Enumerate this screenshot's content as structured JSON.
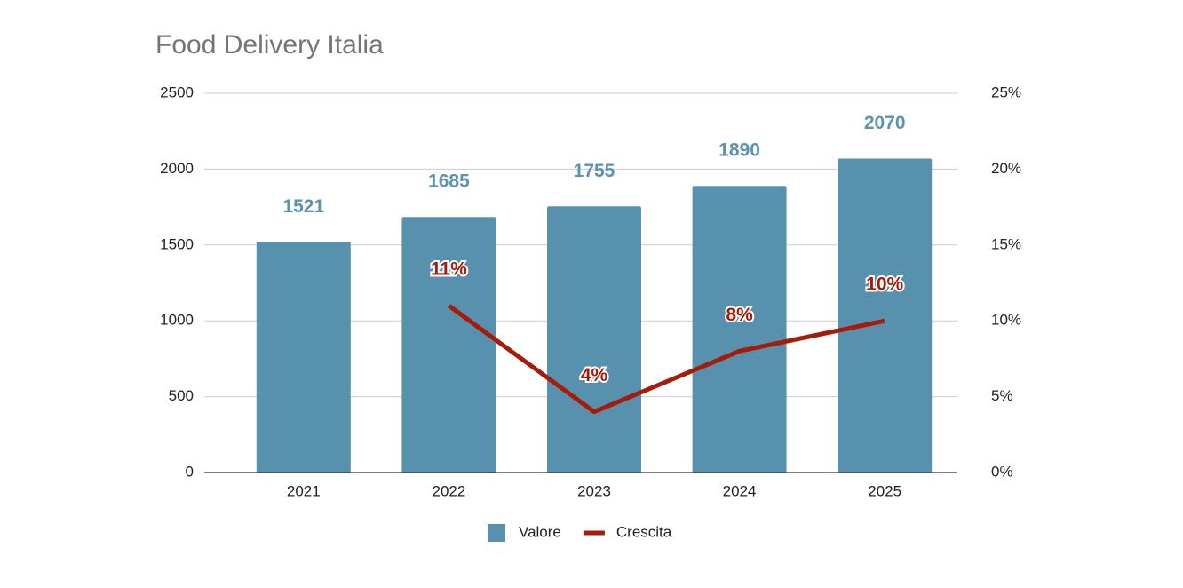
{
  "chart_data": {
    "type": "combo",
    "title": "Food Delivery Italia",
    "categories": [
      "2021",
      "2022",
      "2023",
      "2024",
      "2025"
    ],
    "series": [
      {
        "name": "Valore",
        "type": "bar",
        "color": "#5891ad",
        "values": [
          1521,
          1685,
          1755,
          1890,
          2070
        ]
      },
      {
        "name": "Crescita",
        "type": "line",
        "axis": "y2",
        "color": "#a51c0a",
        "values": [
          null,
          11,
          4,
          8,
          10
        ],
        "value_labels": [
          null,
          "11%",
          "4%",
          "8%",
          "10%"
        ]
      }
    ],
    "ylim": [
      0,
      2500
    ],
    "yticks": [
      0,
      500,
      1000,
      1500,
      2000,
      2500
    ],
    "y2lim": [
      0,
      25
    ],
    "y2ticks": [
      {
        "value": 0,
        "label": "0%"
      },
      {
        "value": 5,
        "label": "5%"
      },
      {
        "value": 10,
        "label": "10%"
      },
      {
        "value": 15,
        "label": "15%"
      },
      {
        "value": 20,
        "label": "20%"
      },
      {
        "value": 25,
        "label": "25%"
      }
    ],
    "grid": true,
    "legend": "bottom"
  }
}
